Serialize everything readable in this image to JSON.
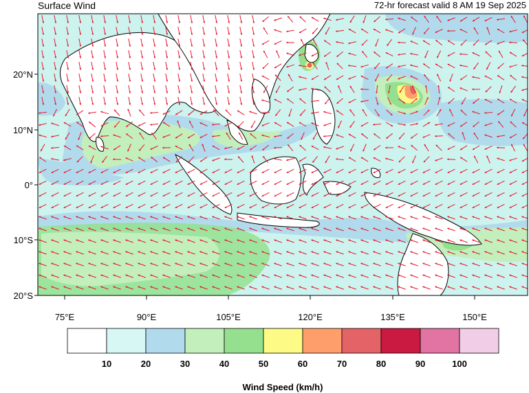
{
  "title": "Surface Wind",
  "subtitle": "72-hr forecast valid 8 AM 19 Sep 2025",
  "map": {
    "lat_ticks": [
      "20°N",
      "10°N",
      "0°",
      "10°S",
      "20°S"
    ],
    "lon_ticks": [
      "75°E",
      "90°E",
      "105°E",
      "120°E",
      "135°E",
      "150°E"
    ],
    "colors": {
      "ocean_fill": "#cdf3ef",
      "land_fill": "#ffffff",
      "wind_arrow": "#e8152b",
      "coastline": "#000000"
    }
  },
  "legend": {
    "title": "Wind Speed (km/h)",
    "bins": [
      {
        "color": "#ffffff"
      },
      {
        "color": "#d6f7f4"
      },
      {
        "color": "#b1dbec"
      },
      {
        "color": "#c3efbc"
      },
      {
        "color": "#94e08f"
      },
      {
        "color": "#fdfb85"
      },
      {
        "color": "#fd9e6b"
      },
      {
        "color": "#e46366"
      },
      {
        "color": "#cb1a41"
      },
      {
        "color": "#e174a2"
      },
      {
        "color": "#f1cde8"
      }
    ],
    "tick_labels": [
      "10",
      "20",
      "30",
      "40",
      "50",
      "60",
      "70",
      "80",
      "90",
      "100"
    ]
  }
}
